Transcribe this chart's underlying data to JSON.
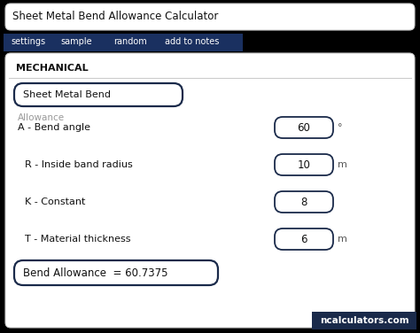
{
  "title": "Sheet Metal Bend Allowance Calculator",
  "nav_items": [
    "settings",
    "sample",
    "random",
    "add to notes"
  ],
  "nav_bg": "#1a2a4a",
  "nav_text_color": "#ffffff",
  "section_label": "MECHANICAL",
  "input_box_label": "Sheet Metal Bend",
  "input_box_sublabel": "Allowance",
  "fields": [
    {
      "label": "A - Bend angle",
      "value": "60",
      "unit": "°"
    },
    {
      "label": "R - Inside band radius",
      "value": "10",
      "unit": "m"
    },
    {
      "label": "K - Constant",
      "value": "8",
      "unit": ""
    },
    {
      "label": "T - Material thickness",
      "value": "6",
      "unit": "m"
    }
  ],
  "result_label": "Bend Allowance  = 60.7375",
  "watermark": "ncalculators.com",
  "watermark_bg": "#1a2a4a",
  "watermark_text_color": "#ffffff",
  "bg_color": "#000000",
  "card_color": "#ffffff",
  "border_color": "#1a2a4a",
  "title_bg": "#ffffff",
  "nav_only_bg": "#1a3060",
  "label_color": "#111111"
}
